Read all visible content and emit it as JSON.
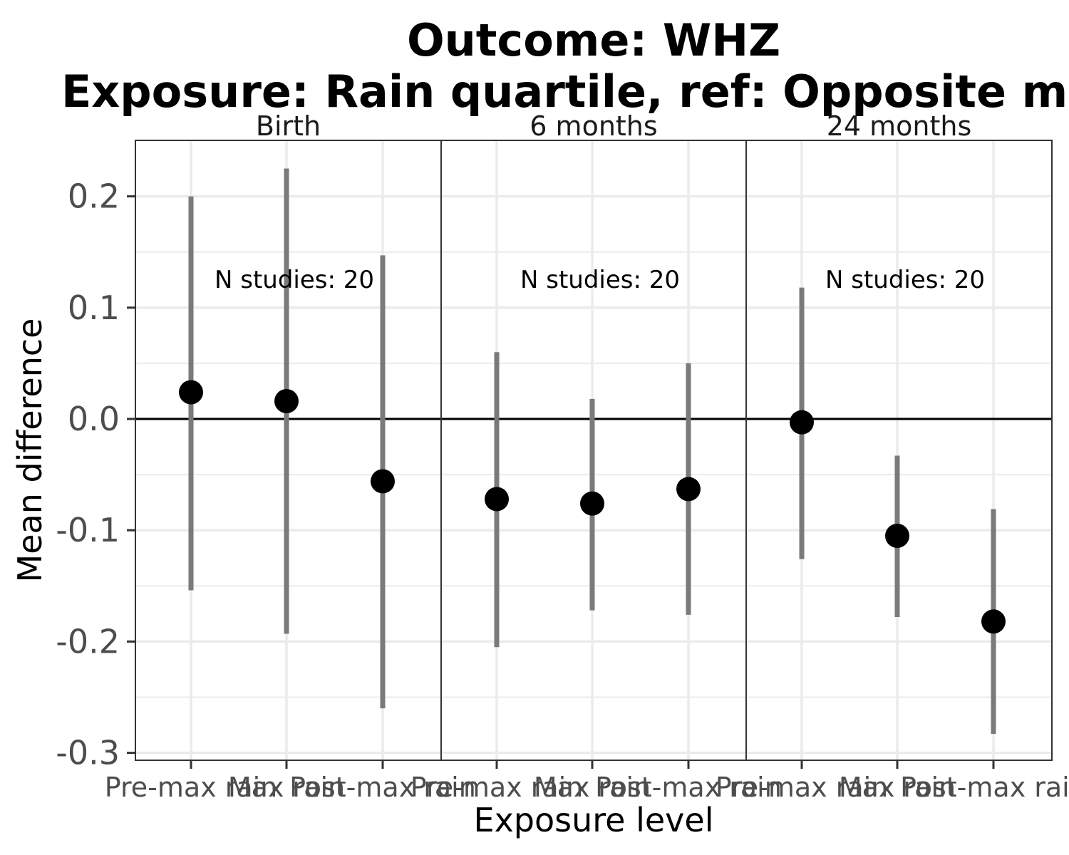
{
  "chart_data": {
    "type": "scatter",
    "title_lines": [
      "Outcome: WHZ",
      "Exposure: Rain quartile, ref: Opposite max"
    ],
    "xlabel": "Exposure level",
    "ylabel": "Mean difference",
    "ylim": [
      -0.32,
      0.25
    ],
    "yticks": [
      0.2,
      0.1,
      0.0,
      -0.1,
      -0.2,
      -0.3
    ],
    "ytick_labels": [
      "0.2",
      "0.1",
      "0.0",
      "-0.1",
      "-0.2",
      "-0.3"
    ],
    "categories": [
      "Pre-max rain",
      "Max rain",
      "Post-max rain"
    ],
    "reference_line": 0.0,
    "grid": true,
    "point_color": "#000000",
    "ci_color": "#7a7a7a",
    "panels": [
      {
        "label": "Birth",
        "annotation": "N studies: 20",
        "estimates": [
          0.024,
          0.016,
          -0.056
        ],
        "lower": [
          -0.154,
          -0.193,
          -0.26
        ],
        "upper": [
          0.2,
          0.225,
          0.147
        ]
      },
      {
        "label": "6 months",
        "annotation": "N studies: 20",
        "estimates": [
          -0.072,
          -0.076,
          -0.063
        ],
        "lower": [
          -0.205,
          -0.172,
          -0.176
        ],
        "upper": [
          0.06,
          0.018,
          0.05
        ]
      },
      {
        "label": "24 months",
        "annotation": "N studies: 20",
        "estimates": [
          -0.003,
          -0.105,
          -0.182
        ],
        "lower": [
          -0.126,
          -0.178,
          -0.283
        ],
        "upper": [
          0.118,
          -0.033,
          -0.081
        ]
      }
    ]
  }
}
